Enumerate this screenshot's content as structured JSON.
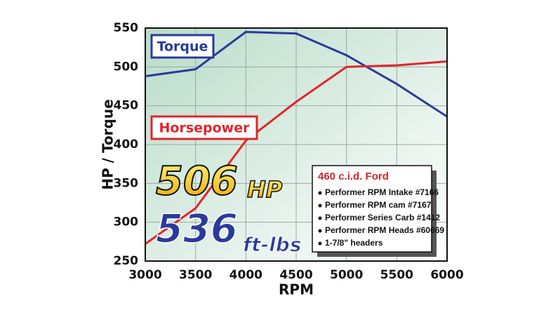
{
  "chart_data": {
    "type": "line",
    "y_label": "HP / Torque",
    "x_label": "RPM",
    "x": [
      3000,
      3500,
      4000,
      4500,
      5000,
      5500,
      6000
    ],
    "series": [
      {
        "name": "Torque",
        "color": "#2a3a9c",
        "values": [
          488,
          497,
          545,
          543,
          515,
          478,
          436
        ]
      },
      {
        "name": "Horsepower",
        "color": "#e0262b",
        "values": [
          272,
          318,
          405,
          455,
          500,
          502,
          507
        ]
      }
    ],
    "xlim": [
      3000,
      6000
    ],
    "xticks": [
      3000,
      3500,
      4000,
      4500,
      5000,
      5500,
      6000
    ],
    "ylim": [
      250,
      550
    ],
    "yticks": [
      250,
      300,
      350,
      400,
      450,
      500,
      550
    ],
    "grid": true,
    "headline": {
      "hp": "506",
      "hp_unit": "HP",
      "torque": "536",
      "torque_unit": "ft-lbs"
    },
    "spec_box": {
      "title": "460 c.i.d. Ford",
      "items": [
        "Performer RPM Intake #7166",
        "Performer RPM cam #7167",
        "Performer Series Carb #1412",
        "Performer RPM Heads #60669",
        "1-7/8\" headers"
      ]
    }
  }
}
